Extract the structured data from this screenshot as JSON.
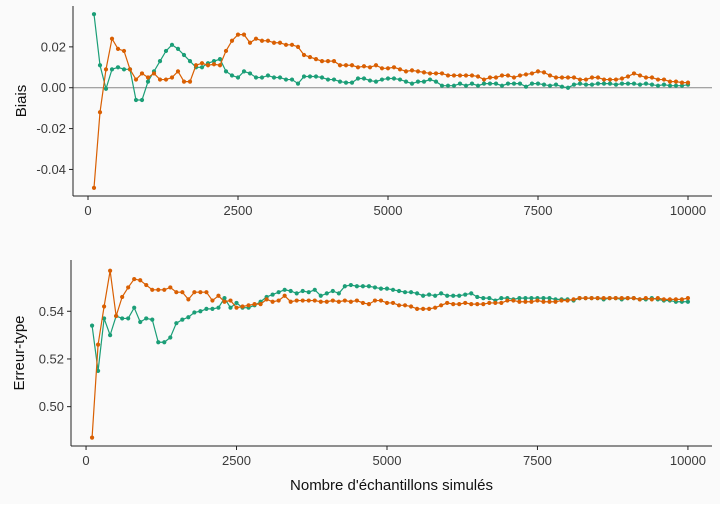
{
  "chart_data": [
    {
      "type": "line",
      "ylabel": "Biais",
      "xlabel": "",
      "xlim": [
        -250,
        10400
      ],
      "ylim": [
        -0.053,
        0.04
      ],
      "xticks": [
        0,
        2500,
        5000,
        7500,
        10000
      ],
      "xtick_labels": [
        "0",
        "2500",
        "5000",
        "7500",
        "10000"
      ],
      "yticks": [
        -0.04,
        -0.02,
        0.0,
        0.02
      ],
      "ytick_labels": [
        "-0.04",
        "-0.02",
        "0.00",
        "0.02"
      ],
      "reference_line": 0.0,
      "series": [
        {
          "name": "teal",
          "color": "#1b9e77",
          "x": [
            100,
            200,
            300,
            400,
            500,
            600,
            700,
            800,
            900,
            1000,
            1100,
            1200,
            1300,
            1400,
            1500,
            1600,
            1700,
            1800,
            1900,
            2000,
            2100,
            2200,
            2300,
            2400,
            2500,
            2600,
            2700,
            2800,
            2900,
            3000,
            3100,
            3200,
            3300,
            3400,
            3500,
            3600,
            3700,
            3800,
            3900,
            4000,
            4100,
            4200,
            4300,
            4400,
            4500,
            4600,
            4700,
            4800,
            4900,
            5000,
            5100,
            5200,
            5300,
            5400,
            5500,
            5600,
            5700,
            5800,
            5900,
            6000,
            6100,
            6200,
            6300,
            6400,
            6500,
            6600,
            6700,
            6800,
            6900,
            7000,
            7100,
            7200,
            7300,
            7400,
            7500,
            7600,
            7700,
            7800,
            7900,
            8000,
            8100,
            8200,
            8300,
            8400,
            8500,
            8600,
            8700,
            8800,
            8900,
            9000,
            9100,
            9200,
            9300,
            9400,
            9500,
            9600,
            9700,
            9800,
            9900,
            10000
          ],
          "y": [
            0.036,
            0.011,
            -0.0005,
            0.009,
            0.01,
            0.009,
            0.009,
            -0.006,
            -0.006,
            0.003,
            0.008,
            0.013,
            0.018,
            0.021,
            0.019,
            0.016,
            0.013,
            0.01,
            0.01,
            0.012,
            0.013,
            0.014,
            0.008,
            0.006,
            0.005,
            0.008,
            0.007,
            0.005,
            0.005,
            0.006,
            0.005,
            0.005,
            0.004,
            0.004,
            0.002,
            0.0055,
            0.0055,
            0.0055,
            0.005,
            0.004,
            0.004,
            0.003,
            0.0025,
            0.0025,
            0.0045,
            0.0045,
            0.0035,
            0.003,
            0.004,
            0.0045,
            0.0045,
            0.004,
            0.003,
            0.002,
            0.003,
            0.003,
            0.004,
            0.003,
            0.001,
            0.001,
            0.001,
            0.002,
            0.001,
            0.002,
            0.001,
            0.002,
            0.002,
            0.002,
            0.001,
            0.002,
            0.002,
            0.002,
            0.0005,
            0.002,
            0.002,
            0.0015,
            0.001,
            0.0015,
            0.0005,
            0.0,
            0.0015,
            0.002,
            0.0015,
            0.0015,
            0.002,
            0.002,
            0.002,
            0.0015,
            0.002,
            0.002,
            0.002,
            0.0015,
            0.002,
            0.0015,
            0.001,
            0.0015,
            0.001,
            0.001,
            0.001,
            0.0015
          ]
        },
        {
          "name": "orange",
          "color": "#d95f02",
          "x": [
            100,
            200,
            300,
            400,
            500,
            600,
            700,
            800,
            900,
            1000,
            1100,
            1200,
            1300,
            1400,
            1500,
            1600,
            1700,
            1800,
            1900,
            2000,
            2100,
            2200,
            2300,
            2400,
            2500,
            2600,
            2700,
            2800,
            2900,
            3000,
            3100,
            3200,
            3300,
            3400,
            3500,
            3600,
            3700,
            3800,
            3900,
            4000,
            4100,
            4200,
            4300,
            4400,
            4500,
            4600,
            4700,
            4800,
            4900,
            5000,
            5100,
            5200,
            5300,
            5400,
            5500,
            5600,
            5700,
            5800,
            5900,
            6000,
            6100,
            6200,
            6300,
            6400,
            6500,
            6600,
            6700,
            6800,
            6900,
            7000,
            7100,
            7200,
            7300,
            7400,
            7500,
            7600,
            7700,
            7800,
            7900,
            8000,
            8100,
            8200,
            8300,
            8400,
            8500,
            8600,
            8700,
            8800,
            8900,
            9000,
            9100,
            9200,
            9300,
            9400,
            9500,
            9600,
            9700,
            9800,
            9900,
            10000
          ],
          "y": [
            -0.049,
            -0.012,
            0.009,
            0.024,
            0.019,
            0.018,
            0.009,
            0.004,
            0.007,
            0.005,
            0.007,
            0.004,
            0.004,
            0.005,
            0.008,
            0.003,
            0.003,
            0.011,
            0.012,
            0.011,
            0.0115,
            0.011,
            0.018,
            0.023,
            0.026,
            0.026,
            0.022,
            0.024,
            0.023,
            0.023,
            0.022,
            0.022,
            0.021,
            0.021,
            0.02,
            0.016,
            0.015,
            0.014,
            0.013,
            0.013,
            0.013,
            0.011,
            0.011,
            0.011,
            0.01,
            0.0105,
            0.01,
            0.011,
            0.0095,
            0.0095,
            0.01,
            0.009,
            0.008,
            0.0085,
            0.008,
            0.0075,
            0.007,
            0.007,
            0.007,
            0.006,
            0.006,
            0.006,
            0.006,
            0.006,
            0.0055,
            0.004,
            0.005,
            0.005,
            0.006,
            0.006,
            0.005,
            0.006,
            0.0065,
            0.007,
            0.008,
            0.0075,
            0.006,
            0.005,
            0.005,
            0.005,
            0.005,
            0.004,
            0.004,
            0.005,
            0.005,
            0.004,
            0.004,
            0.004,
            0.0045,
            0.0055,
            0.007,
            0.006,
            0.005,
            0.005,
            0.004,
            0.004,
            0.003,
            0.003,
            0.0025,
            0.0025
          ]
        }
      ]
    },
    {
      "type": "line",
      "ylabel": "Erreur-type",
      "xlabel": "Nombre d'échantillons simulés",
      "xlim": [
        -250,
        10400
      ],
      "ylim": [
        0.4835,
        0.5615
      ],
      "xticks": [
        0,
        2500,
        5000,
        7500,
        10000
      ],
      "xtick_labels": [
        "0",
        "2500",
        "5000",
        "7500",
        "10000"
      ],
      "yticks": [
        0.5,
        0.52,
        0.54
      ],
      "ytick_labels": [
        "0.50",
        "0.52",
        "0.54"
      ],
      "series": [
        {
          "name": "teal",
          "color": "#1b9e77",
          "x": [
            100,
            200,
            300,
            400,
            500,
            600,
            700,
            800,
            900,
            1000,
            1100,
            1200,
            1300,
            1400,
            1500,
            1600,
            1700,
            1800,
            1900,
            2000,
            2100,
            2200,
            2300,
            2400,
            2500,
            2600,
            2700,
            2800,
            2900,
            3000,
            3100,
            3200,
            3300,
            3400,
            3500,
            3600,
            3700,
            3800,
            3900,
            4000,
            4100,
            4200,
            4300,
            4400,
            4500,
            4600,
            4700,
            4800,
            4900,
            5000,
            5100,
            5200,
            5300,
            5400,
            5500,
            5600,
            5700,
            5800,
            5900,
            6000,
            6100,
            6200,
            6300,
            6400,
            6500,
            6600,
            6700,
            6800,
            6900,
            7000,
            7100,
            7200,
            7300,
            7400,
            7500,
            7600,
            7700,
            7800,
            7900,
            8000,
            8100,
            8200,
            8300,
            8400,
            8500,
            8600,
            8700,
            8800,
            8900,
            9000,
            9100,
            9200,
            9300,
            9400,
            9500,
            9600,
            9700,
            9800,
            9900,
            10000
          ],
          "y": [
            0.534,
            0.515,
            0.537,
            0.53,
            0.538,
            0.537,
            0.537,
            0.5415,
            0.5355,
            0.537,
            0.5365,
            0.527,
            0.527,
            0.529,
            0.535,
            0.5365,
            0.5375,
            0.5395,
            0.54,
            0.541,
            0.541,
            0.5415,
            0.5455,
            0.5415,
            0.5435,
            0.5415,
            0.5415,
            0.5425,
            0.544,
            0.546,
            0.547,
            0.548,
            0.549,
            0.5485,
            0.5475,
            0.5485,
            0.548,
            0.549,
            0.5465,
            0.5475,
            0.5485,
            0.5475,
            0.5505,
            0.551,
            0.5505,
            0.5505,
            0.5505,
            0.55,
            0.5495,
            0.5495,
            0.549,
            0.5485,
            0.548,
            0.548,
            0.5475,
            0.5465,
            0.547,
            0.5465,
            0.5475,
            0.5465,
            0.5465,
            0.5465,
            0.547,
            0.5475,
            0.546,
            0.5455,
            0.5455,
            0.5445,
            0.5455,
            0.5455,
            0.545,
            0.5455,
            0.5455,
            0.5455,
            0.5455,
            0.5455,
            0.5455,
            0.545,
            0.545,
            0.545,
            0.5445,
            0.5455,
            0.5455,
            0.5455,
            0.5455,
            0.545,
            0.5455,
            0.5455,
            0.545,
            0.5455,
            0.5455,
            0.545,
            0.545,
            0.5455,
            0.545,
            0.5445,
            0.5445,
            0.544,
            0.544,
            0.544
          ]
        },
        {
          "name": "orange",
          "color": "#d95f02",
          "x": [
            100,
            200,
            300,
            400,
            500,
            600,
            700,
            800,
            900,
            1000,
            1100,
            1200,
            1300,
            1400,
            1500,
            1600,
            1700,
            1800,
            1900,
            2000,
            2100,
            2200,
            2300,
            2400,
            2500,
            2600,
            2700,
            2800,
            2900,
            3000,
            3100,
            3200,
            3300,
            3400,
            3500,
            3600,
            3700,
            3800,
            3900,
            4000,
            4100,
            4200,
            4300,
            4400,
            4500,
            4600,
            4700,
            4800,
            4900,
            5000,
            5100,
            5200,
            5300,
            5400,
            5500,
            5600,
            5700,
            5800,
            5900,
            6000,
            6100,
            6200,
            6300,
            6400,
            6500,
            6600,
            6700,
            6800,
            6900,
            7000,
            7100,
            7200,
            7300,
            7400,
            7500,
            7600,
            7700,
            7800,
            7900,
            8000,
            8100,
            8200,
            8300,
            8400,
            8500,
            8600,
            8700,
            8800,
            8900,
            9000,
            9100,
            9200,
            9300,
            9400,
            9500,
            9600,
            9700,
            9800,
            9900,
            10000
          ],
          "y": [
            0.487,
            0.526,
            0.542,
            0.557,
            0.538,
            0.546,
            0.55,
            0.5535,
            0.553,
            0.551,
            0.549,
            0.549,
            0.549,
            0.55,
            0.548,
            0.548,
            0.545,
            0.548,
            0.548,
            0.548,
            0.5445,
            0.5465,
            0.544,
            0.5445,
            0.5415,
            0.542,
            0.5425,
            0.543,
            0.543,
            0.545,
            0.544,
            0.5445,
            0.5465,
            0.544,
            0.5445,
            0.5445,
            0.5445,
            0.5445,
            0.544,
            0.544,
            0.5445,
            0.544,
            0.5445,
            0.544,
            0.5445,
            0.5435,
            0.543,
            0.5445,
            0.5445,
            0.5435,
            0.5435,
            0.5425,
            0.5425,
            0.542,
            0.541,
            0.541,
            0.541,
            0.5415,
            0.5425,
            0.5435,
            0.543,
            0.543,
            0.5435,
            0.543,
            0.543,
            0.543,
            0.5435,
            0.5435,
            0.5435,
            0.5445,
            0.5445,
            0.544,
            0.544,
            0.544,
            0.5445,
            0.544,
            0.544,
            0.544,
            0.5445,
            0.5445,
            0.545,
            0.5455,
            0.5455,
            0.5455,
            0.5455,
            0.5455,
            0.5455,
            0.5455,
            0.5455,
            0.5455,
            0.5455,
            0.545,
            0.5455,
            0.545,
            0.5455,
            0.545,
            0.545,
            0.545,
            0.545,
            0.5455
          ]
        }
      ]
    }
  ]
}
